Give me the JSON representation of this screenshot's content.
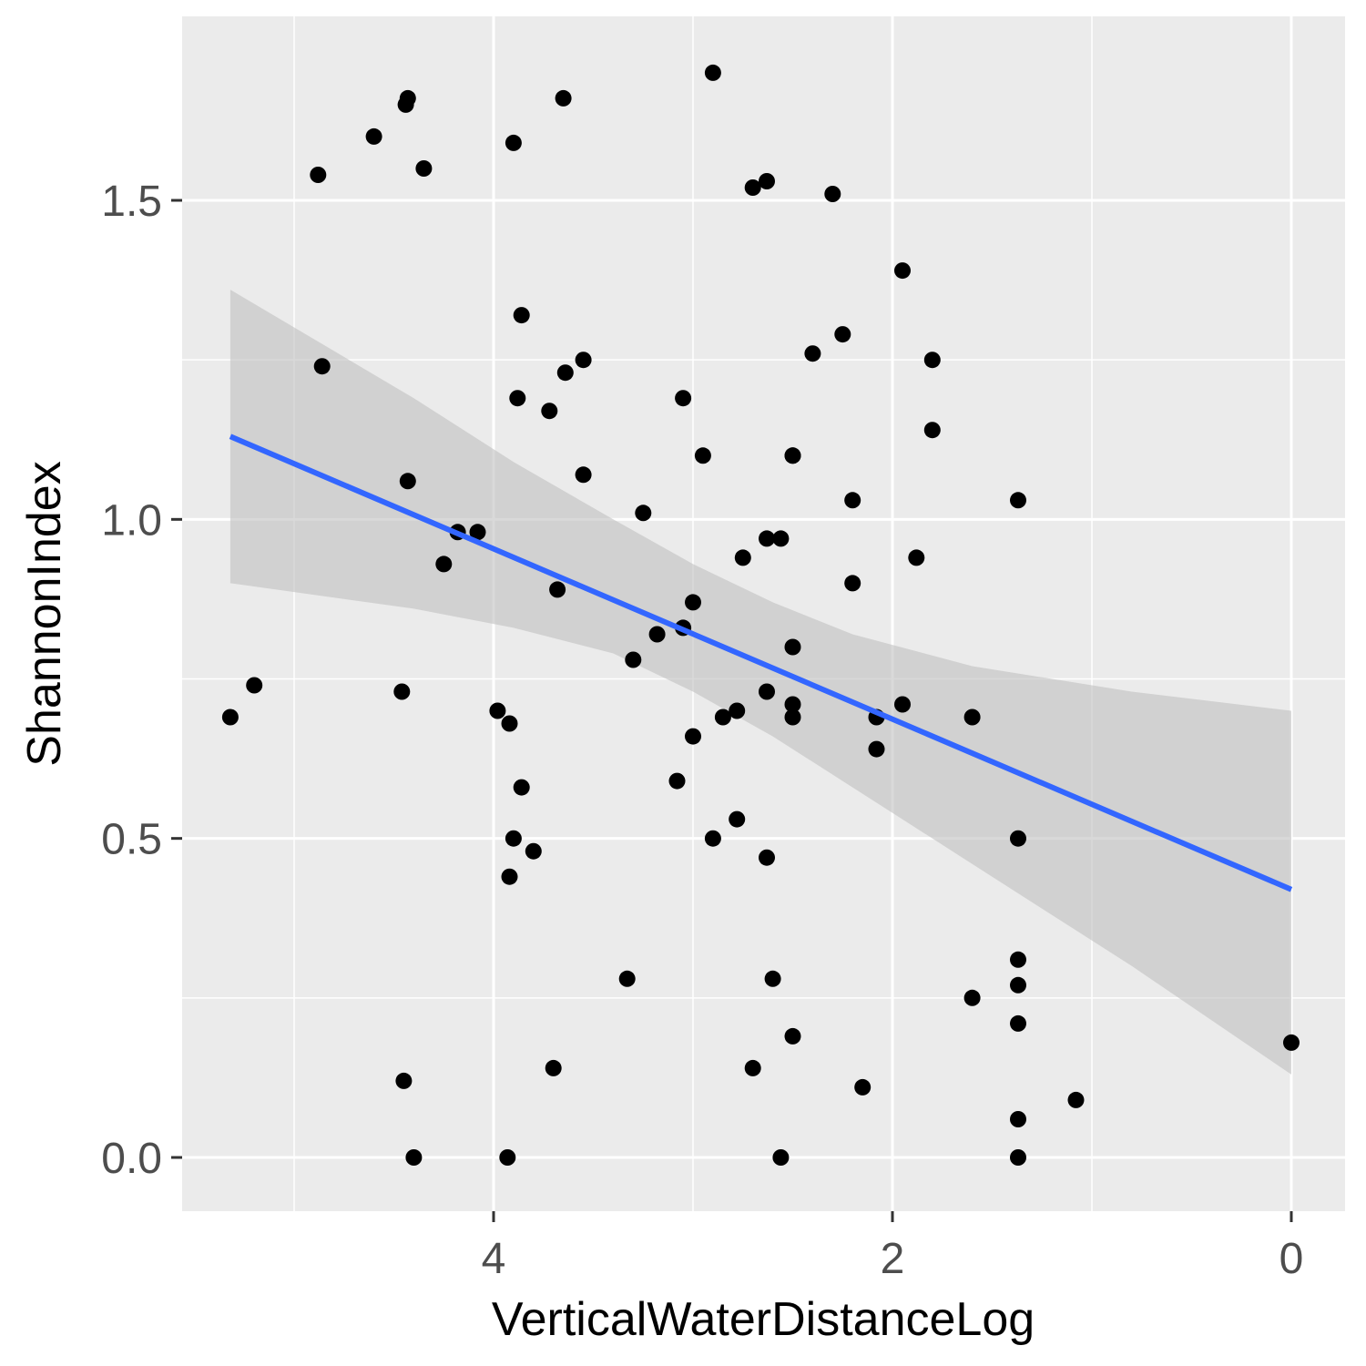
{
  "chart_data": {
    "type": "scatter",
    "xlabel": "VerticalWaterDistanceLog",
    "ylabel": "ShannonIndex",
    "x_reversed": true,
    "xlim": [
      5.6,
      -0.28
    ],
    "ylim": [
      -0.08,
      1.76
    ],
    "x_ticks": [
      4,
      2,
      0
    ],
    "y_ticks": [
      0.0,
      0.5,
      1.0,
      1.5
    ],
    "x_tick_labels": [
      "4",
      "2",
      "0"
    ],
    "y_tick_labels": [
      "0.0",
      "0.5",
      "1.0",
      "1.5"
    ],
    "grid": true,
    "point_color": "#000000",
    "fit_color": "#3366ff",
    "ci_color": "#bfbfbf",
    "panel_background": "#ebebeb",
    "grid_color": "#ffffff",
    "points": [
      {
        "x": 4.88,
        "y": 1.54
      },
      {
        "x": 4.6,
        "y": 1.6
      },
      {
        "x": 4.43,
        "y": 1.66
      },
      {
        "x": 4.44,
        "y": 1.65
      },
      {
        "x": 4.35,
        "y": 1.55
      },
      {
        "x": 3.9,
        "y": 1.59
      },
      {
        "x": 3.65,
        "y": 1.66
      },
      {
        "x": 2.9,
        "y": 1.7
      },
      {
        "x": 2.7,
        "y": 1.52
      },
      {
        "x": 2.63,
        "y": 1.53
      },
      {
        "x": 2.3,
        "y": 1.51
      },
      {
        "x": 1.95,
        "y": 1.39
      },
      {
        "x": 4.86,
        "y": 1.24
      },
      {
        "x": 3.86,
        "y": 1.32
      },
      {
        "x": 3.55,
        "y": 1.25
      },
      {
        "x": 3.64,
        "y": 1.23
      },
      {
        "x": 3.88,
        "y": 1.19
      },
      {
        "x": 3.72,
        "y": 1.17
      },
      {
        "x": 3.05,
        "y": 1.19
      },
      {
        "x": 2.25,
        "y": 1.29
      },
      {
        "x": 2.4,
        "y": 1.26
      },
      {
        "x": 1.8,
        "y": 1.25
      },
      {
        "x": 1.8,
        "y": 1.14
      },
      {
        "x": 2.95,
        "y": 1.1
      },
      {
        "x": 2.5,
        "y": 1.1
      },
      {
        "x": 2.5,
        "y": 1.1
      },
      {
        "x": 3.55,
        "y": 1.07
      },
      {
        "x": 4.43,
        "y": 1.06
      },
      {
        "x": 2.2,
        "y": 1.03
      },
      {
        "x": 1.37,
        "y": 1.03
      },
      {
        "x": 3.25,
        "y": 1.01
      },
      {
        "x": 4.18,
        "y": 0.98
      },
      {
        "x": 4.08,
        "y": 0.98
      },
      {
        "x": 2.63,
        "y": 0.97
      },
      {
        "x": 2.56,
        "y": 0.97
      },
      {
        "x": 2.75,
        "y": 0.94
      },
      {
        "x": 4.25,
        "y": 0.93
      },
      {
        "x": 1.88,
        "y": 0.94
      },
      {
        "x": 2.2,
        "y": 0.9
      },
      {
        "x": 3.68,
        "y": 0.89
      },
      {
        "x": 3.0,
        "y": 0.87
      },
      {
        "x": 3.05,
        "y": 0.83
      },
      {
        "x": 3.18,
        "y": 0.82
      },
      {
        "x": 2.5,
        "y": 0.8
      },
      {
        "x": 3.3,
        "y": 0.78
      },
      {
        "x": 5.2,
        "y": 0.74
      },
      {
        "x": 4.46,
        "y": 0.73
      },
      {
        "x": 2.63,
        "y": 0.73
      },
      {
        "x": 3.98,
        "y": 0.7
      },
      {
        "x": 2.5,
        "y": 0.71
      },
      {
        "x": 1.95,
        "y": 0.71
      },
      {
        "x": 5.32,
        "y": 0.69
      },
      {
        "x": 3.92,
        "y": 0.68
      },
      {
        "x": 2.85,
        "y": 0.69
      },
      {
        "x": 2.78,
        "y": 0.7
      },
      {
        "x": 2.5,
        "y": 0.69
      },
      {
        "x": 2.08,
        "y": 0.69
      },
      {
        "x": 1.6,
        "y": 0.69
      },
      {
        "x": 3.0,
        "y": 0.66
      },
      {
        "x": 2.08,
        "y": 0.64
      },
      {
        "x": 3.08,
        "y": 0.59
      },
      {
        "x": 3.86,
        "y": 0.58
      },
      {
        "x": 2.78,
        "y": 0.53
      },
      {
        "x": 3.9,
        "y": 0.5
      },
      {
        "x": 2.9,
        "y": 0.5
      },
      {
        "x": 1.37,
        "y": 0.5
      },
      {
        "x": 3.8,
        "y": 0.48
      },
      {
        "x": 2.63,
        "y": 0.47
      },
      {
        "x": 3.92,
        "y": 0.44
      },
      {
        "x": 1.37,
        "y": 0.31
      },
      {
        "x": 3.33,
        "y": 0.28
      },
      {
        "x": 2.6,
        "y": 0.28
      },
      {
        "x": 1.37,
        "y": 0.27
      },
      {
        "x": 1.6,
        "y": 0.25
      },
      {
        "x": 1.37,
        "y": 0.21
      },
      {
        "x": 2.5,
        "y": 0.19
      },
      {
        "x": 0.0,
        "y": 0.18
      },
      {
        "x": 3.7,
        "y": 0.14
      },
      {
        "x": 2.7,
        "y": 0.14
      },
      {
        "x": 4.45,
        "y": 0.12
      },
      {
        "x": 2.15,
        "y": 0.11
      },
      {
        "x": 1.08,
        "y": 0.09
      },
      {
        "x": 1.37,
        "y": 0.06
      },
      {
        "x": 4.4,
        "y": 0.0
      },
      {
        "x": 3.93,
        "y": 0.0
      },
      {
        "x": 2.56,
        "y": 0.0
      },
      {
        "x": 1.37,
        "y": 0.0
      }
    ],
    "fit_line": [
      {
        "x": 5.32,
        "y": 1.13
      },
      {
        "x": 0.0,
        "y": 0.42
      }
    ],
    "ci_upper": [
      {
        "x": 5.32,
        "y": 1.36
      },
      {
        "x": 4.4,
        "y": 1.19
      },
      {
        "x": 3.9,
        "y": 1.09
      },
      {
        "x": 3.4,
        "y": 1.0
      },
      {
        "x": 3.0,
        "y": 0.93
      },
      {
        "x": 2.6,
        "y": 0.87
      },
      {
        "x": 2.2,
        "y": 0.82
      },
      {
        "x": 1.6,
        "y": 0.77
      },
      {
        "x": 0.8,
        "y": 0.73
      },
      {
        "x": 0.0,
        "y": 0.7
      }
    ],
    "ci_lower": [
      {
        "x": 0.0,
        "y": 0.13
      },
      {
        "x": 0.8,
        "y": 0.3
      },
      {
        "x": 1.6,
        "y": 0.46
      },
      {
        "x": 2.2,
        "y": 0.58
      },
      {
        "x": 2.6,
        "y": 0.66
      },
      {
        "x": 3.0,
        "y": 0.73
      },
      {
        "x": 3.4,
        "y": 0.79
      },
      {
        "x": 3.9,
        "y": 0.83
      },
      {
        "x": 4.4,
        "y": 0.86
      },
      {
        "x": 5.32,
        "y": 0.9
      }
    ]
  }
}
